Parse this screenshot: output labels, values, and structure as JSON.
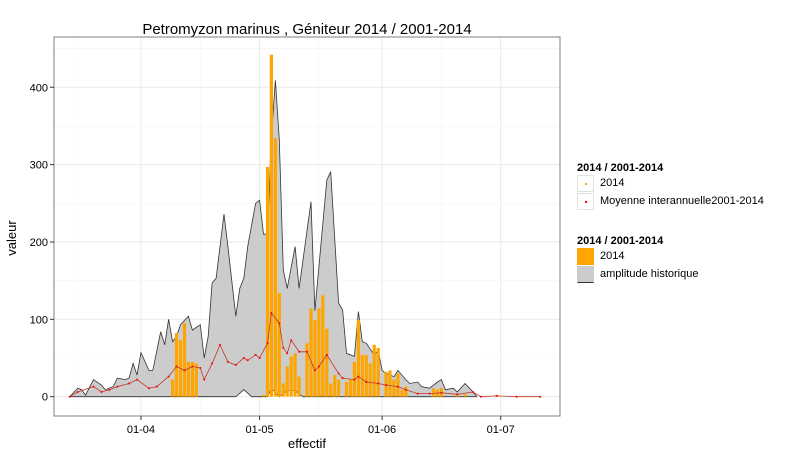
{
  "chart_data": {
    "type": "area+bar+line",
    "title": "Petromyzon marinus , Géniteur 2014 / 2001-2014",
    "xlabel": "effectif",
    "ylabel": "valeur",
    "xlim": [
      "2014-03-10",
      "2014-07-16"
    ],
    "ylim": [
      -25,
      465
    ],
    "x_ticks": [
      {
        "date": "2014-04-01",
        "label": "01-04"
      },
      {
        "date": "2014-05-01",
        "label": "01-05"
      },
      {
        "date": "2014-06-01",
        "label": "01-06"
      },
      {
        "date": "2014-07-01",
        "label": "01-07"
      }
    ],
    "y_ticks": [
      0,
      100,
      200,
      300,
      400
    ],
    "grid": true,
    "legend_placement": "right",
    "colors": {
      "bars_2014": "#FFA500",
      "amplitude": "#CCCCCC",
      "amplitude_line": "#333333",
      "mean": "#FF0000",
      "points_2014": "#FFA500"
    },
    "legends": [
      {
        "title": "2014 / 2001-2014",
        "entries": [
          {
            "label": "2014",
            "kind": "point",
            "color": "#FFA500"
          },
          {
            "label": "Moyenne interannuelle2001-2014",
            "kind": "point",
            "color": "#FF0000"
          }
        ]
      },
      {
        "title": "2014 / 2001-2014",
        "entries": [
          {
            "label": "2014",
            "kind": "fill",
            "color": "#FFA500"
          },
          {
            "label": "amplitude historique",
            "kind": "fill",
            "color": "#CCCCCC"
          }
        ]
      }
    ],
    "amplitude_max": [
      [
        "2014-03-14",
        0
      ],
      [
        "2014-03-16",
        11
      ],
      [
        "2014-03-17",
        9
      ],
      [
        "2014-03-18",
        2
      ],
      [
        "2014-03-20",
        22
      ],
      [
        "2014-03-22",
        15
      ],
      [
        "2014-03-23",
        9
      ],
      [
        "2014-03-25",
        13
      ],
      [
        "2014-03-26",
        24
      ],
      [
        "2014-03-28",
        22
      ],
      [
        "2014-03-29",
        24
      ],
      [
        "2014-03-30",
        43
      ],
      [
        "2014-03-31",
        28
      ],
      [
        "2014-04-01",
        57
      ],
      [
        "2014-04-03",
        34
      ],
      [
        "2014-04-04",
        34
      ],
      [
        "2014-04-06",
        84
      ],
      [
        "2014-04-07",
        67
      ],
      [
        "2014-04-08",
        100
      ],
      [
        "2014-04-09",
        71
      ],
      [
        "2014-04-10",
        78
      ],
      [
        "2014-04-11",
        93
      ],
      [
        "2014-04-13",
        104
      ],
      [
        "2014-04-14",
        86
      ],
      [
        "2014-04-16",
        93
      ],
      [
        "2014-04-17",
        50
      ],
      [
        "2014-04-18",
        78
      ],
      [
        "2014-04-19",
        147
      ],
      [
        "2014-04-20",
        153
      ],
      [
        "2014-04-22",
        236
      ],
      [
        "2014-04-23",
        194
      ],
      [
        "2014-04-25",
        104
      ],
      [
        "2014-04-26",
        140
      ],
      [
        "2014-04-27",
        153
      ],
      [
        "2014-04-28",
        194
      ],
      [
        "2014-04-30",
        250
      ],
      [
        "2014-05-01",
        254
      ],
      [
        "2014-05-02",
        210
      ],
      [
        "2014-05-03",
        210
      ],
      [
        "2014-05-04",
        336
      ],
      [
        "2014-05-05",
        409
      ],
      [
        "2014-05-06",
        332
      ],
      [
        "2014-05-07",
        164
      ],
      [
        "2014-05-08",
        140
      ],
      [
        "2014-05-10",
        194
      ],
      [
        "2014-05-11",
        140
      ],
      [
        "2014-05-14",
        252
      ],
      [
        "2014-05-15",
        111
      ],
      [
        "2014-05-18",
        280
      ],
      [
        "2014-05-19",
        291
      ],
      [
        "2014-05-21",
        121
      ],
      [
        "2014-05-22",
        112
      ],
      [
        "2014-05-23",
        56
      ],
      [
        "2014-05-25",
        52
      ],
      [
        "2014-05-26",
        110
      ],
      [
        "2014-05-27",
        71
      ],
      [
        "2014-05-28",
        69
      ],
      [
        "2014-05-30",
        54
      ],
      [
        "2014-05-31",
        60
      ],
      [
        "2014-06-01",
        34
      ],
      [
        "2014-06-02",
        30
      ],
      [
        "2014-06-04",
        26
      ],
      [
        "2014-06-05",
        34
      ],
      [
        "2014-06-07",
        22
      ],
      [
        "2014-06-08",
        17
      ],
      [
        "2014-06-10",
        19
      ],
      [
        "2014-06-11",
        13
      ],
      [
        "2014-06-13",
        11
      ],
      [
        "2014-06-15",
        19
      ],
      [
        "2014-06-16",
        22
      ],
      [
        "2014-06-17",
        9
      ],
      [
        "2014-06-19",
        11
      ],
      [
        "2014-06-20",
        6
      ],
      [
        "2014-06-22",
        17
      ],
      [
        "2014-06-24",
        6
      ],
      [
        "2014-06-25",
        0
      ]
    ],
    "amplitude_min": [
      [
        "2014-03-14",
        0
      ],
      [
        "2014-04-25",
        0
      ],
      [
        "2014-04-27",
        9
      ],
      [
        "2014-04-29",
        0
      ],
      [
        "2014-05-03",
        0
      ],
      [
        "2014-05-04",
        11
      ],
      [
        "2014-05-06",
        0
      ],
      [
        "2014-05-08",
        8
      ],
      [
        "2014-05-10",
        8
      ],
      [
        "2014-05-12",
        0
      ],
      [
        "2014-06-25",
        0
      ]
    ],
    "mean_2001_2014": [
      [
        "2014-03-14",
        0
      ],
      [
        "2014-03-16",
        6
      ],
      [
        "2014-03-20",
        13
      ],
      [
        "2014-03-22",
        6
      ],
      [
        "2014-03-24",
        9
      ],
      [
        "2014-03-26",
        13
      ],
      [
        "2014-03-29",
        17
      ],
      [
        "2014-03-31",
        22
      ],
      [
        "2014-04-03",
        11
      ],
      [
        "2014-04-05",
        13
      ],
      [
        "2014-04-08",
        26
      ],
      [
        "2014-04-10",
        39
      ],
      [
        "2014-04-12",
        34
      ],
      [
        "2014-04-14",
        39
      ],
      [
        "2014-04-16",
        37
      ],
      [
        "2014-04-17",
        22
      ],
      [
        "2014-04-19",
        43
      ],
      [
        "2014-04-21",
        67
      ],
      [
        "2014-04-23",
        45
      ],
      [
        "2014-04-25",
        41
      ],
      [
        "2014-04-27",
        50
      ],
      [
        "2014-04-28",
        47
      ],
      [
        "2014-04-30",
        54
      ],
      [
        "2014-05-01",
        50
      ],
      [
        "2014-05-03",
        69
      ],
      [
        "2014-05-04",
        108
      ],
      [
        "2014-05-06",
        95
      ],
      [
        "2014-05-07",
        63
      ],
      [
        "2014-05-08",
        56
      ],
      [
        "2014-05-09",
        73
      ],
      [
        "2014-05-11",
        58
      ],
      [
        "2014-05-13",
        58
      ],
      [
        "2014-05-15",
        34
      ],
      [
        "2014-05-16",
        39
      ],
      [
        "2014-05-18",
        54
      ],
      [
        "2014-05-21",
        30
      ],
      [
        "2014-05-22",
        24
      ],
      [
        "2014-05-25",
        22
      ],
      [
        "2014-05-26",
        26
      ],
      [
        "2014-05-28",
        19
      ],
      [
        "2014-05-31",
        17
      ],
      [
        "2014-06-02",
        15
      ],
      [
        "2014-06-05",
        13
      ],
      [
        "2014-06-07",
        9
      ],
      [
        "2014-06-10",
        4
      ],
      [
        "2014-06-13",
        4
      ],
      [
        "2014-06-16",
        5
      ],
      [
        "2014-06-20",
        3
      ],
      [
        "2014-06-24",
        6
      ],
      [
        "2014-06-26",
        0
      ],
      [
        "2014-06-30",
        1
      ],
      [
        "2014-07-05",
        0
      ],
      [
        "2014-07-11",
        0
      ]
    ],
    "bars_2014": [
      [
        "2014-04-09",
        22
      ],
      [
        "2014-04-10",
        82
      ],
      [
        "2014-04-11",
        73
      ],
      [
        "2014-04-12",
        95
      ],
      [
        "2014-04-13",
        45
      ],
      [
        "2014-04-14",
        45
      ],
      [
        "2014-04-15",
        43
      ],
      [
        "2014-05-02",
        2
      ],
      [
        "2014-05-03",
        297
      ],
      [
        "2014-05-04",
        442
      ],
      [
        "2014-05-05",
        334
      ],
      [
        "2014-05-06",
        134
      ],
      [
        "2014-05-07",
        17
      ],
      [
        "2014-05-08",
        39
      ],
      [
        "2014-05-09",
        52
      ],
      [
        "2014-05-10",
        56
      ],
      [
        "2014-05-11",
        26
      ],
      [
        "2014-05-13",
        69
      ],
      [
        "2014-05-14",
        114
      ],
      [
        "2014-05-15",
        99
      ],
      [
        "2014-05-16",
        114
      ],
      [
        "2014-05-17",
        131
      ],
      [
        "2014-05-18",
        88
      ],
      [
        "2014-05-19",
        17
      ],
      [
        "2014-05-20",
        28
      ],
      [
        "2014-05-21",
        22
      ],
      [
        "2014-05-23",
        19
      ],
      [
        "2014-05-24",
        22
      ],
      [
        "2014-05-25",
        45
      ],
      [
        "2014-05-26",
        99
      ],
      [
        "2014-05-27",
        54
      ],
      [
        "2014-05-28",
        54
      ],
      [
        "2014-05-29",
        43
      ],
      [
        "2014-05-30",
        67
      ],
      [
        "2014-05-31",
        63
      ],
      [
        "2014-06-02",
        32
      ],
      [
        "2014-06-03",
        34
      ],
      [
        "2014-06-04",
        22
      ],
      [
        "2014-06-05",
        30
      ],
      [
        "2014-06-06",
        9
      ],
      [
        "2014-06-07",
        13
      ],
      [
        "2014-06-14",
        11
      ],
      [
        "2014-06-15",
        9
      ],
      [
        "2014-06-16",
        11
      ],
      [
        "2014-06-20",
        2
      ],
      [
        "2014-06-22",
        3
      ],
      [
        "2014-06-30",
        2
      ]
    ]
  }
}
